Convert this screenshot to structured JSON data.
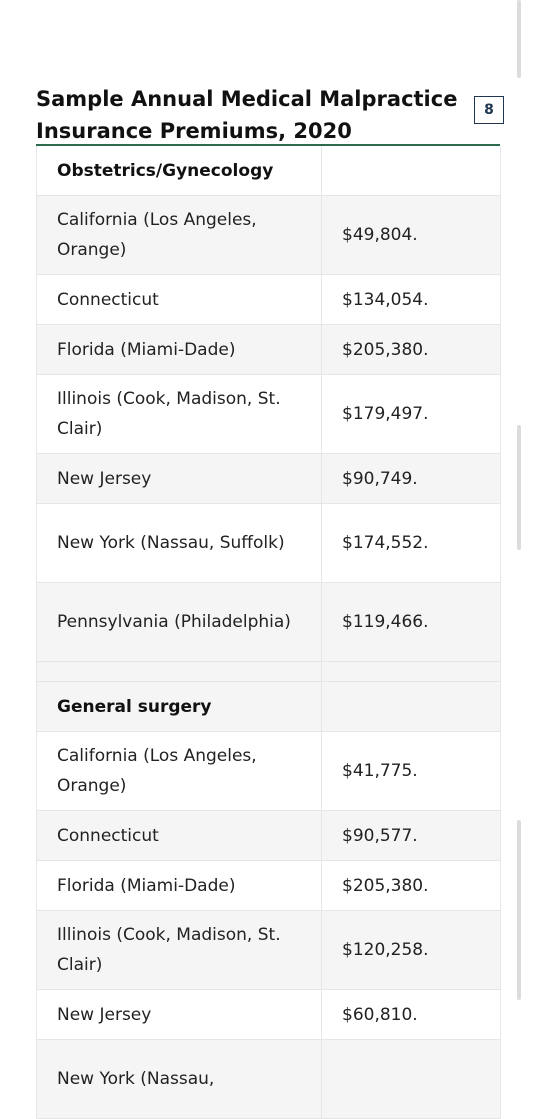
{
  "document": {
    "title": "Sample Annual Medical Malpractice Insurance Premiums, 2020",
    "page_number": "8"
  },
  "table": {
    "sections": [
      {
        "heading": "Obstetrics/Gynecology",
        "rows": [
          {
            "state": "California (Los Angeles, Orange)",
            "premium": "$49,804."
          },
          {
            "state": "Connecticut",
            "premium": "$134,054."
          },
          {
            "state": "Florida (Miami-Dade)",
            "premium": "$205,380."
          },
          {
            "state": "Illinois (Cook, Madison, St. Clair)",
            "premium": "$179,497."
          },
          {
            "state": "New Jersey",
            "premium": "$90,749."
          },
          {
            "state": "New York (Nassau, Suffolk)",
            "premium": "$174,552."
          },
          {
            "state": "Pennsylvania (Philadelphia)",
            "premium": "$119,466."
          }
        ]
      },
      {
        "heading": "General surgery",
        "rows": [
          {
            "state": "California (Los Angeles, Orange)",
            "premium": "$41,775."
          },
          {
            "state": "Connecticut",
            "premium": "$90,577."
          },
          {
            "state": "Florida (Miami-Dade)",
            "premium": "$205,380."
          },
          {
            "state": "Illinois (Cook, Madison, St. Clair)",
            "premium": "$120,258."
          },
          {
            "state": "New Jersey",
            "premium": "$60,810."
          },
          {
            "state": "New York (Nassau,",
            "premium": ""
          }
        ]
      }
    ]
  }
}
